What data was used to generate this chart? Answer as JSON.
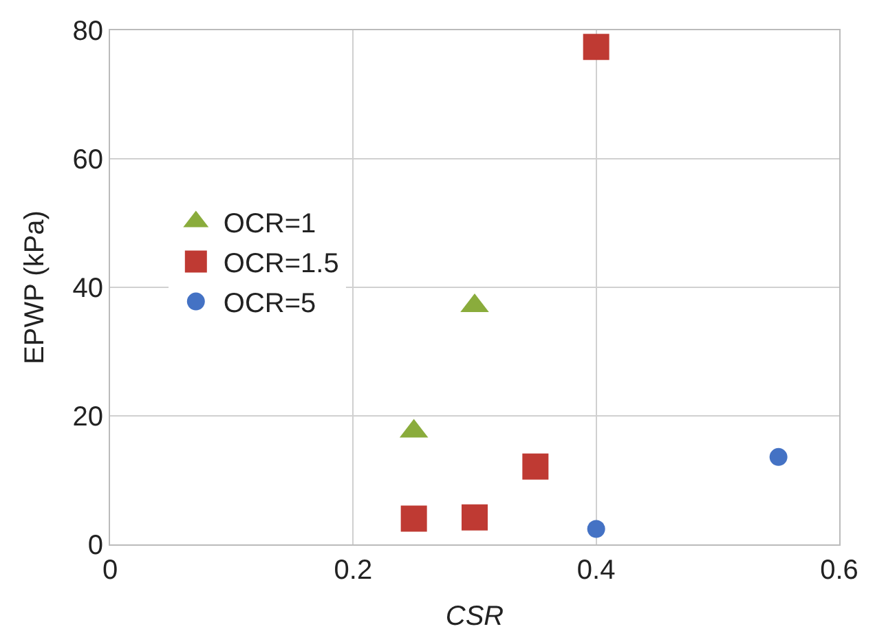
{
  "chart_data": {
    "type": "scatter",
    "xlabel": "CSR",
    "ylabel": "EPWP (kPa)",
    "xlim": [
      0,
      0.6
    ],
    "xticks": [
      0,
      0.2,
      0.4,
      0.6
    ],
    "ylim": [
      0,
      80
    ],
    "yticks": [
      0,
      20,
      40,
      60,
      80
    ],
    "grid": true,
    "legend": "left",
    "series": [
      {
        "name": "OCR=1",
        "color": "#8aac3c",
        "marker": "triangle",
        "x": [
          0.25,
          0.3
        ],
        "values": [
          17.6,
          37.1
        ]
      },
      {
        "name": "OCR=1.5",
        "color": "#bf3a33",
        "marker": "square",
        "x": [
          0.25,
          0.3,
          0.35,
          0.4
        ],
        "values": [
          4.0,
          4.2,
          12.1,
          77.4
        ]
      },
      {
        "name": "OCR=5",
        "color": "#4472c4",
        "marker": "circle",
        "x": [
          0.4,
          0.55
        ],
        "values": [
          2.4,
          13.6
        ]
      }
    ]
  }
}
